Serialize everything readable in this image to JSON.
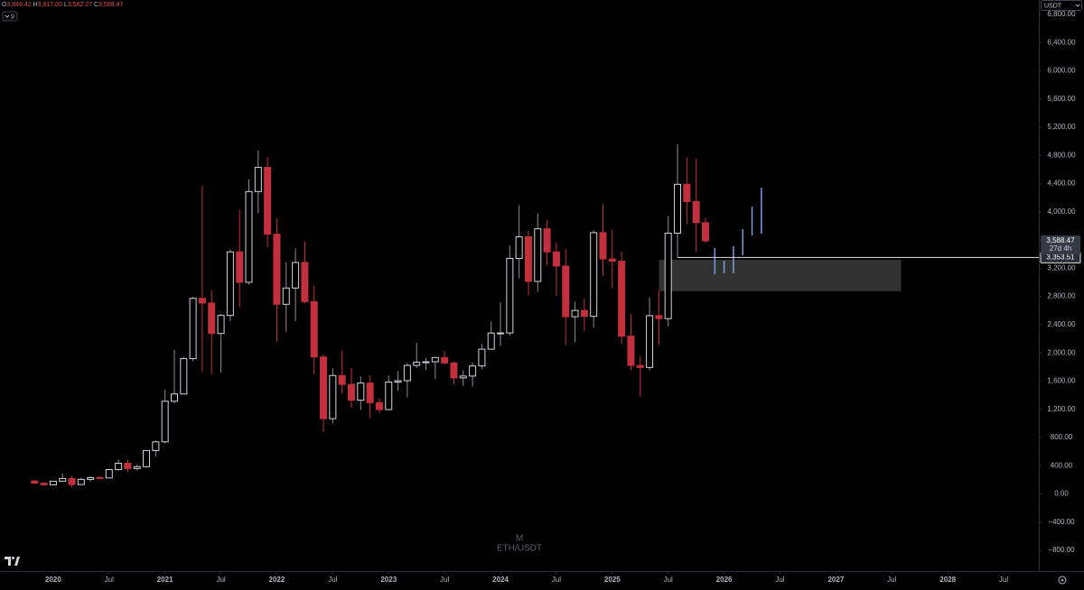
{
  "header": {
    "legend": [
      {
        "key": "O",
        "text": "3,846.42"
      },
      {
        "key": "H",
        "text": "3,917.00"
      },
      {
        "key": "L",
        "text": "3,562.27"
      },
      {
        "key": "C",
        "text": "3,588.47"
      }
    ],
    "indicators": "9",
    "currency": "USDT"
  },
  "chart_data": {
    "type": "candlestick",
    "x": [
      "2019-11",
      "2019-12",
      "2020-01",
      "2020-02",
      "2020-03",
      "2020-04",
      "2020-05",
      "2020-06",
      "2020-07",
      "2020-08",
      "2020-09",
      "2020-10",
      "2020-11",
      "2020-12",
      "2021-01",
      "2021-02",
      "2021-03",
      "2021-04",
      "2021-05",
      "2021-06",
      "2021-07",
      "2021-08",
      "2021-09",
      "2021-10",
      "2021-11",
      "2021-12",
      "2022-01",
      "2022-02",
      "2022-03",
      "2022-04",
      "2022-05",
      "2022-06",
      "2022-07",
      "2022-08",
      "2022-09",
      "2022-10",
      "2022-11",
      "2022-12",
      "2023-01",
      "2023-02",
      "2023-03",
      "2023-04",
      "2023-05",
      "2023-06",
      "2023-07",
      "2023-08",
      "2023-09",
      "2023-10",
      "2023-11",
      "2023-12",
      "2024-01",
      "2024-02",
      "2024-03",
      "2024-04",
      "2024-05",
      "2024-06",
      "2024-07",
      "2024-08",
      "2024-09",
      "2024-10",
      "2024-11",
      "2024-12",
      "2025-01",
      "2025-02",
      "2025-03",
      "2025-04",
      "2025-05",
      "2025-06",
      "2025-07",
      "2025-08",
      "2025-09",
      "2025-10",
      "2025-11"
    ],
    "open": [
      183,
      152,
      129,
      180,
      218,
      133,
      206,
      231,
      226,
      345,
      434,
      360,
      386,
      615,
      738,
      1314,
      1417,
      1918,
      2773,
      2707,
      2275,
      2531,
      3433,
      3001,
      4288,
      4631,
      3683,
      2689,
      2920,
      3282,
      2727,
      1942,
      1067,
      1679,
      1553,
      1328,
      1572,
      1295,
      1196,
      1586,
      1605,
      1822,
      1869,
      1874,
      1934,
      1857,
      1645,
      1671,
      1815,
      2052,
      2282,
      2283,
      3340,
      3646,
      3014,
      3760,
      3432,
      3232,
      2513,
      2602,
      2518,
      3705,
      3332,
      3300,
      2237,
      1822,
      1793,
      2528,
      2486,
      3698,
      4391,
      4145,
      3846.42
    ],
    "high": [
      195,
      155,
      185,
      288,
      253,
      227,
      247,
      253,
      349,
      489,
      488,
      420,
      623,
      756,
      1476,
      2041,
      1943,
      2797,
      4372,
      2891,
      2551,
      3470,
      4027,
      4460,
      4868,
      4778,
      3900,
      3286,
      3482,
      3580,
      2955,
      1975,
      1783,
      2030,
      1785,
      1666,
      1680,
      1353,
      1679,
      1743,
      1857,
      2142,
      1929,
      1929,
      2029,
      1877,
      1753,
      1865,
      2130,
      2447,
      2717,
      3522,
      4093,
      3730,
      3977,
      3887,
      3563,
      3477,
      2728,
      2770,
      3740,
      4107,
      3745,
      3440,
      2550,
      1950,
      2788,
      2880,
      3941,
      4956,
      4770,
      4755,
      3917
    ],
    "low": [
      140,
      117,
      127,
      180,
      90,
      130,
      178,
      217,
      225,
      334,
      308,
      335,
      372,
      531,
      714,
      1282,
      1421,
      1880,
      1728,
      1700,
      1719,
      2450,
      2651,
      2970,
      3980,
      3500,
      2160,
      2300,
      2450,
      2695,
      1700,
      880,
      1005,
      1420,
      1220,
      1191,
      1073,
      1145,
      1190,
      1461,
      1371,
      1785,
      1759,
      1626,
      1833,
      1550,
      1531,
      1522,
      1770,
      2050,
      2100,
      2243,
      3056,
      2817,
      2865,
      3240,
      2810,
      2111,
      2150,
      2310,
      2357,
      3097,
      2920,
      2125,
      1755,
      1385,
      1752,
      2111,
      2373,
      3355,
      3826,
      3435,
      3562.27
    ],
    "close": [
      152,
      129,
      180,
      218,
      133,
      206,
      231,
      226,
      345,
      434,
      360,
      386,
      615,
      738,
      1314,
      1417,
      1918,
      2773,
      2707,
      2275,
      2531,
      3433,
      3001,
      4288,
      4631,
      3683,
      2689,
      2920,
      3282,
      2727,
      1942,
      1067,
      1679,
      1553,
      1328,
      1572,
      1295,
      1196,
      1586,
      1605,
      1822,
      1869,
      1874,
      1934,
      1857,
      1645,
      1671,
      1815,
      2052,
      2282,
      2283,
      3340,
      3646,
      3014,
      3760,
      3432,
      3232,
      2513,
      2602,
      2518,
      3705,
      3332,
      3300,
      2237,
      1822,
      1793,
      2528,
      2486,
      3698,
      4391,
      4145,
      3847,
      3588.47
    ],
    "up_color": "#d1d4dc",
    "down_color": "#c2303e",
    "projection": {
      "x": [
        "2025-12",
        "2026-01",
        "2026-02",
        "2026-03",
        "2026-04",
        "2026-05"
      ],
      "high": [
        3487,
        3308,
        3512,
        3755,
        4074,
        4342
      ],
      "low": [
        3116,
        3129,
        3129,
        3384,
        3665,
        3691
      ],
      "color": "#7b9be0"
    },
    "zone": {
      "x0": "2025-06",
      "x1": "2027-08",
      "top": 3320,
      "bottom": 2875,
      "color": "#3b3b3b"
    },
    "level": {
      "value": 3353.51,
      "label": "3,353.51",
      "from": "2025-08",
      "color": "#e0e0e0"
    },
    "last_price": {
      "value": 3588.47,
      "label": "3,588.47",
      "countdown": "27d 4h"
    },
    "watermark": {
      "interval": "M",
      "symbol": "ETH/USDT"
    },
    "xlim": [
      "2019-07",
      "2028-10"
    ],
    "xticks": [
      {
        "value": "2020-01",
        "label": "2020"
      },
      {
        "value": "2020-07",
        "label": "Jul"
      },
      {
        "value": "2021-01",
        "label": "2021"
      },
      {
        "value": "2021-07",
        "label": "Jul"
      },
      {
        "value": "2022-01",
        "label": "2022"
      },
      {
        "value": "2022-07",
        "label": "Jul"
      },
      {
        "value": "2023-01",
        "label": "2023"
      },
      {
        "value": "2023-07",
        "label": "Jul"
      },
      {
        "value": "2024-01",
        "label": "2024"
      },
      {
        "value": "2024-07",
        "label": "Jul"
      },
      {
        "value": "2025-01",
        "label": "2025"
      },
      {
        "value": "2025-07",
        "label": "Jul"
      },
      {
        "value": "2026-01",
        "label": "2026"
      },
      {
        "value": "2026-07",
        "label": "Jul"
      },
      {
        "value": "2027-01",
        "label": "2027"
      },
      {
        "value": "2027-07",
        "label": "Jul"
      },
      {
        "value": "2028-01",
        "label": "2028"
      },
      {
        "value": "2028-07",
        "label": "Jul"
      }
    ],
    "ylim": [
      -1056,
      7005
    ],
    "yticks": [
      {
        "value": -800,
        "label": "−800.00"
      },
      {
        "value": -400,
        "label": "−400.00"
      },
      {
        "value": 0,
        "label": "0.00"
      },
      {
        "value": 400,
        "label": "400.00"
      },
      {
        "value": 800,
        "label": "800.00"
      },
      {
        "value": 1200,
        "label": "1,200.00"
      },
      {
        "value": 1600,
        "label": "1,600.00"
      },
      {
        "value": 2000,
        "label": "2,000.00"
      },
      {
        "value": 2400,
        "label": "2,400.00"
      },
      {
        "value": 2800,
        "label": "2,800.00"
      },
      {
        "value": 3200,
        "label": "3,200.00"
      },
      {
        "value": 3600,
        "label": "3,600.00"
      },
      {
        "value": 4000,
        "label": "4,000.00"
      },
      {
        "value": 4400,
        "label": "4,400.00"
      },
      {
        "value": 4800,
        "label": "4,800.00"
      },
      {
        "value": 5200,
        "label": "5,200.00"
      },
      {
        "value": 5600,
        "label": "5,600.00"
      },
      {
        "value": 6000,
        "label": "6,000.00"
      },
      {
        "value": 6400,
        "label": "6,400.00"
      },
      {
        "value": 6800,
        "label": "6,800.00"
      }
    ]
  }
}
